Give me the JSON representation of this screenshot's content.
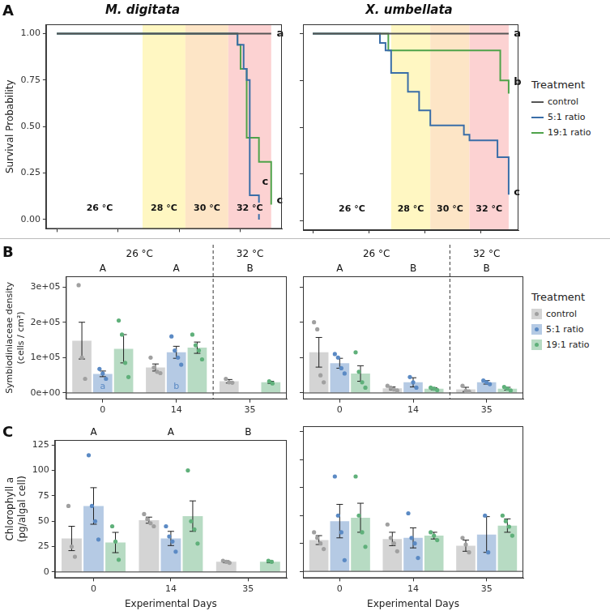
{
  "figure": {
    "panel_labels": [
      "A",
      "B",
      "C"
    ],
    "legend_title": "Treatment"
  },
  "chart_data": [
    {
      "type": "line",
      "title": "M. digitata",
      "y_label": "Survival Probability",
      "xlim": [
        -1.75,
        36.75
      ],
      "xticks": [
        0,
        10,
        20,
        30
      ],
      "ylim": [
        -0.05,
        1.05
      ],
      "yticks": [
        {
          "value": 0,
          "label": "0.00"
        },
        {
          "value": 0.25,
          "label": "0.25"
        },
        {
          "value": 0.5,
          "label": "0.50"
        },
        {
          "value": 0.75,
          "label": "0.75"
        },
        {
          "value": 1,
          "label": "1.00"
        }
      ],
      "grid": false,
      "tick_labels": "y",
      "line_style": "step",
      "bands": [
        {
          "start": 0,
          "end": 14,
          "label": "26 °C",
          "color": "#ffffff"
        },
        {
          "start": 14,
          "end": 21,
          "label": "28 °C",
          "color": "#fff7c2"
        },
        {
          "start": 21,
          "end": 28,
          "label": "30 °C",
          "color": "#fde5c6"
        },
        {
          "start": 28,
          "end": 35,
          "label": "32 °C",
          "color": "#fcd2d2"
        }
      ],
      "series": [
        {
          "name": "control",
          "color": "#555555",
          "x": [
            0,
            35
          ],
          "values": [
            1,
            1
          ]
        },
        {
          "name": "5:1 ratio",
          "color": "#3a6ea8",
          "x": [
            0,
            29.5,
            30.5,
            31,
            31.5,
            33
          ],
          "values": [
            1,
            0.94,
            0.81,
            0.75,
            0.13,
            0
          ]
        },
        {
          "name": "19:1 ratio",
          "color": "#4fa34a",
          "x": [
            0,
            29.5,
            30,
            31,
            33,
            35
          ],
          "values": [
            1,
            0.94,
            0.81,
            0.44,
            0.31,
            0.08
          ]
        }
      ],
      "annotations": [
        {
          "x": 35.9,
          "y": 1.0,
          "text": "a"
        },
        {
          "x": 33.5,
          "y": 0.2,
          "text": "c"
        },
        {
          "x": 35.9,
          "y": 0.1,
          "text": "c"
        }
      ]
    },
    {
      "type": "line",
      "title": "X. umbellata",
      "xlim": [
        -1.75,
        36.75
      ],
      "xticks": [
        0,
        10,
        20,
        30
      ],
      "ylim": [
        -0.05,
        1.05
      ],
      "yticks": [
        {
          "value": 0,
          "label": "0.00"
        },
        {
          "value": 0.25,
          "label": "0.25"
        },
        {
          "value": 0.5,
          "label": "0.50"
        },
        {
          "value": 0.75,
          "label": "0.75"
        },
        {
          "value": 1,
          "label": "1.00"
        }
      ],
      "grid": false,
      "tick_labels": false,
      "line_style": "step",
      "legend": "right",
      "bands": [
        {
          "start": 0,
          "end": 14,
          "label": "26 °C",
          "color": "#ffffff"
        },
        {
          "start": 14,
          "end": 21,
          "label": "28 °C",
          "color": "#fff7c2"
        },
        {
          "start": 21,
          "end": 28,
          "label": "30 °C",
          "color": "#fde5c6"
        },
        {
          "start": 28,
          "end": 35,
          "label": "32 °C",
          "color": "#fcd2d2"
        }
      ],
      "series": [
        {
          "name": "control",
          "color": "#555555",
          "x": [
            0,
            35
          ],
          "values": [
            1,
            1
          ]
        },
        {
          "name": "5:1 ratio",
          "color": "#3a6ea8",
          "x": [
            0,
            12,
            13,
            14,
            17,
            19,
            21,
            27,
            28,
            33,
            35
          ],
          "values": [
            1,
            0.95,
            0.91,
            0.79,
            0.69,
            0.59,
            0.51,
            0.46,
            0.43,
            0.34,
            0.14
          ]
        },
        {
          "name": "19:1 ratio",
          "color": "#4fa34a",
          "x": [
            0,
            13.5,
            33.5,
            35
          ],
          "values": [
            1,
            0.91,
            0.75,
            0.68
          ]
        }
      ],
      "annotations": [
        {
          "x": 35.9,
          "y": 1.0,
          "text": "a"
        },
        {
          "x": 35.9,
          "y": 0.74,
          "text": "b"
        },
        {
          "x": 35.9,
          "y": 0.15,
          "text": "c"
        }
      ]
    },
    {
      "type": "bar",
      "categories": [
        "0",
        "14",
        "35"
      ],
      "y_label": [
        "Symbiodiniaceae density",
        "(cells / cm²)"
      ],
      "ylim": [
        -18000,
        330000
      ],
      "yticks": [
        {
          "value": 0,
          "label": "0e+00"
        },
        {
          "value": 100000,
          "label": "1e+05"
        },
        {
          "value": 200000,
          "label": "2e+05"
        },
        {
          "value": 300000,
          "label": "3e+05"
        }
      ],
      "grid": false,
      "temperature_groups": [
        {
          "label": "26 °C",
          "categories": [
            "0",
            "14"
          ]
        },
        {
          "label": "32 °C",
          "categories": [
            "35"
          ]
        }
      ],
      "group_letters": [
        "A",
        "A",
        "B"
      ],
      "series": [
        {
          "name": "control",
          "color": "#a0a0a0",
          "values": [
            148000,
            72000,
            33000
          ],
          "errors": [
            52000,
            10000,
            5000
          ],
          "points": [
            [
              305000,
              100000,
              40000
            ],
            [
              100000,
              72000,
              60000,
              56000
            ],
            [
              40000,
              30000,
              29000
            ]
          ]
        },
        {
          "name": "5:1 ratio",
          "color": "#5b8ac4",
          "values": [
            54000,
            115000,
            null
          ],
          "errors": [
            8000,
            17000,
            null
          ],
          "points": [
            [
              68000,
              55000,
              40000
            ],
            [
              160000,
              120000,
              100000,
              80000
            ],
            null
          ],
          "letters": [
            "a",
            "b",
            null
          ]
        },
        {
          "name": "19:1 ratio",
          "color": "#5fb07a",
          "values": [
            125000,
            128000,
            30000
          ],
          "errors": [
            40000,
            16000,
            3000
          ],
          "points": [
            [
              205000,
              165000,
              85000,
              45000
            ],
            [
              165000,
              135000,
              120000,
              95000
            ],
            [
              33000,
              27000
            ]
          ]
        }
      ]
    },
    {
      "type": "bar",
      "categories": [
        "0",
        "14",
        "35"
      ],
      "ylim": [
        -18000,
        330000
      ],
      "yticks": [
        {
          "value": 0,
          "label": "0e+00"
        },
        {
          "value": 100000,
          "label": "1e+05"
        },
        {
          "value": 200000,
          "label": "2e+05"
        },
        {
          "value": 300000,
          "label": "3e+05"
        }
      ],
      "grid": false,
      "tick_labels": "x",
      "legend": "right",
      "temperature_groups": [
        {
          "label": "26 °C",
          "categories": [
            "0",
            "14"
          ]
        },
        {
          "label": "32 °C",
          "categories": [
            "35"
          ]
        }
      ],
      "group_letters": [
        "A",
        "B",
        "B"
      ],
      "series": [
        {
          "name": "control",
          "color": "#a0a0a0",
          "values": [
            115000,
            13000,
            10000
          ],
          "errors": [
            42000,
            4000,
            6000
          ],
          "points": [
            [
              200000,
              180000,
              50000,
              30000
            ],
            [
              20000,
              15000,
              10000,
              7000
            ],
            [
              20000,
              6000,
              4000
            ]
          ]
        },
        {
          "name": "5:1 ratio",
          "color": "#5b8ac4",
          "values": [
            84000,
            30000,
            30000
          ],
          "errors": [
            14000,
            13000,
            5000
          ],
          "points": [
            [
              110000,
              100000,
              70000,
              55000
            ],
            [
              45000,
              30000,
              15000
            ],
            [
              35000,
              30000,
              25000
            ]
          ]
        },
        {
          "name": "19:1 ratio",
          "color": "#5fb07a",
          "values": [
            55000,
            12000,
            12000
          ],
          "errors": [
            22000,
            3000,
            4000
          ],
          "points": [
            [
              115000,
              60000,
              30000,
              15000
            ],
            [
              15000,
              12000,
              8000
            ],
            [
              17000,
              12000,
              7000
            ]
          ]
        }
      ]
    },
    {
      "type": "bar",
      "categories": [
        "0",
        "14",
        "35"
      ],
      "y_label": [
        "Chlorophyll a",
        "(pg/algal cell)"
      ],
      "x_label": "Experimental Days",
      "ylim": [
        -6,
        130
      ],
      "yticks": [
        0,
        25,
        50,
        75,
        100,
        125
      ],
      "grid": false,
      "group_letters": [
        "A",
        "A",
        "B"
      ],
      "series": [
        {
          "name": "control",
          "color": "#a0a0a0",
          "values": [
            33,
            51,
            10
          ],
          "errors": [
            12,
            3,
            1
          ],
          "points": [
            [
              65,
              25,
              15
            ],
            [
              57,
              52,
              48,
              45
            ],
            [
              11,
              10,
              9
            ]
          ]
        },
        {
          "name": "5:1 ratio",
          "color": "#5b8ac4",
          "values": [
            65,
            33,
            null
          ],
          "errors": [
            18,
            7,
            null
          ],
          "points": [
            [
              115,
              65,
              50,
              32
            ],
            [
              45,
              35,
              30,
              20
            ],
            null
          ]
        },
        {
          "name": "19:1 ratio",
          "color": "#5fb07a",
          "values": [
            29,
            55,
            10
          ],
          "errors": [
            10,
            15,
            1
          ],
          "points": [
            [
              45,
              30,
              12
            ],
            [
              100,
              50,
              42,
              28
            ],
            [
              11,
              10
            ]
          ]
        }
      ]
    },
    {
      "type": "bar",
      "categories": [
        "0",
        "14",
        "35"
      ],
      "x_label": "Experimental Days",
      "ylim": [
        -6,
        130
      ],
      "yticks": [
        0,
        25,
        50,
        75,
        100,
        125
      ],
      "grid": false,
      "tick_labels": "x",
      "series": [
        {
          "name": "control",
          "color": "#a0a0a0",
          "values": [
            28,
            29,
            23
          ],
          "errors": [
            4,
            6,
            5
          ],
          "points": [
            [
              35,
              30,
              25,
              20
            ],
            [
              42,
              30,
              25,
              18
            ],
            [
              30,
              24,
              17
            ]
          ]
        },
        {
          "name": "5:1 ratio",
          "color": "#5b8ac4",
          "values": [
            45,
            30,
            33
          ],
          "errors": [
            15,
            9,
            16
          ],
          "points": [
            [
              85,
              50,
              35,
              10
            ],
            [
              52,
              30,
              25,
              12
            ],
            [
              50,
              17
            ]
          ]
        },
        {
          "name": "19:1 ratio",
          "color": "#5fb07a",
          "values": [
            48,
            32,
            41
          ],
          "errors": [
            13,
            3,
            6
          ],
          "points": [
            [
              85,
              50,
              35,
              22
            ],
            [
              35,
              32,
              28
            ],
            [
              50,
              45,
              40,
              32
            ]
          ]
        }
      ]
    }
  ]
}
